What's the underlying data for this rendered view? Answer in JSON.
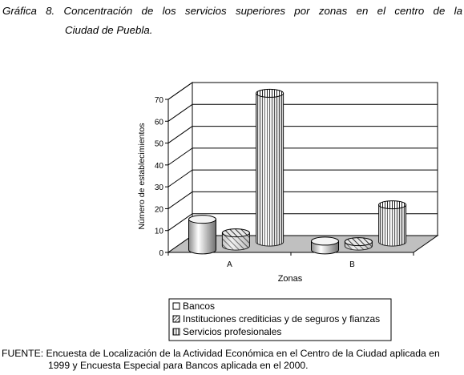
{
  "title_line1": "Gráfica 8. Concentración de los servicios superiores por zonas en el centro de la",
  "title_line2": "Ciudad de Puebla.",
  "chart_data": {
    "type": "bar",
    "style": "3d-cylinder",
    "categories": [
      "A",
      "B"
    ],
    "series": [
      {
        "name": "Bancos",
        "values": [
          14,
          4
        ],
        "color": "#ffffff",
        "pattern": "none"
      },
      {
        "name": "Instituciones crediticias y de seguros y fianzas",
        "values": [
          6,
          2
        ],
        "color": "#ffffff",
        "pattern": "diagonal-hatch"
      },
      {
        "name": "Servicios profesionales",
        "values": [
          68,
          17
        ],
        "color": "#ffffff",
        "pattern": "vertical-stripes"
      }
    ],
    "xlabel": "Zonas",
    "ylabel": "Número de establecimientos",
    "ylim": [
      0,
      70
    ],
    "yticks": [
      "0",
      "10",
      "20",
      "30",
      "40",
      "50",
      "60",
      "70"
    ],
    "grid": true,
    "legend_position": "bottom-center"
  },
  "source_line1": "FUENTE: Encuesta de Localización de la Actividad Económica en el Centro de la Ciudad aplicada en",
  "source_line2": "1999 y Encuesta Especial para Bancos aplicada en el 2000."
}
